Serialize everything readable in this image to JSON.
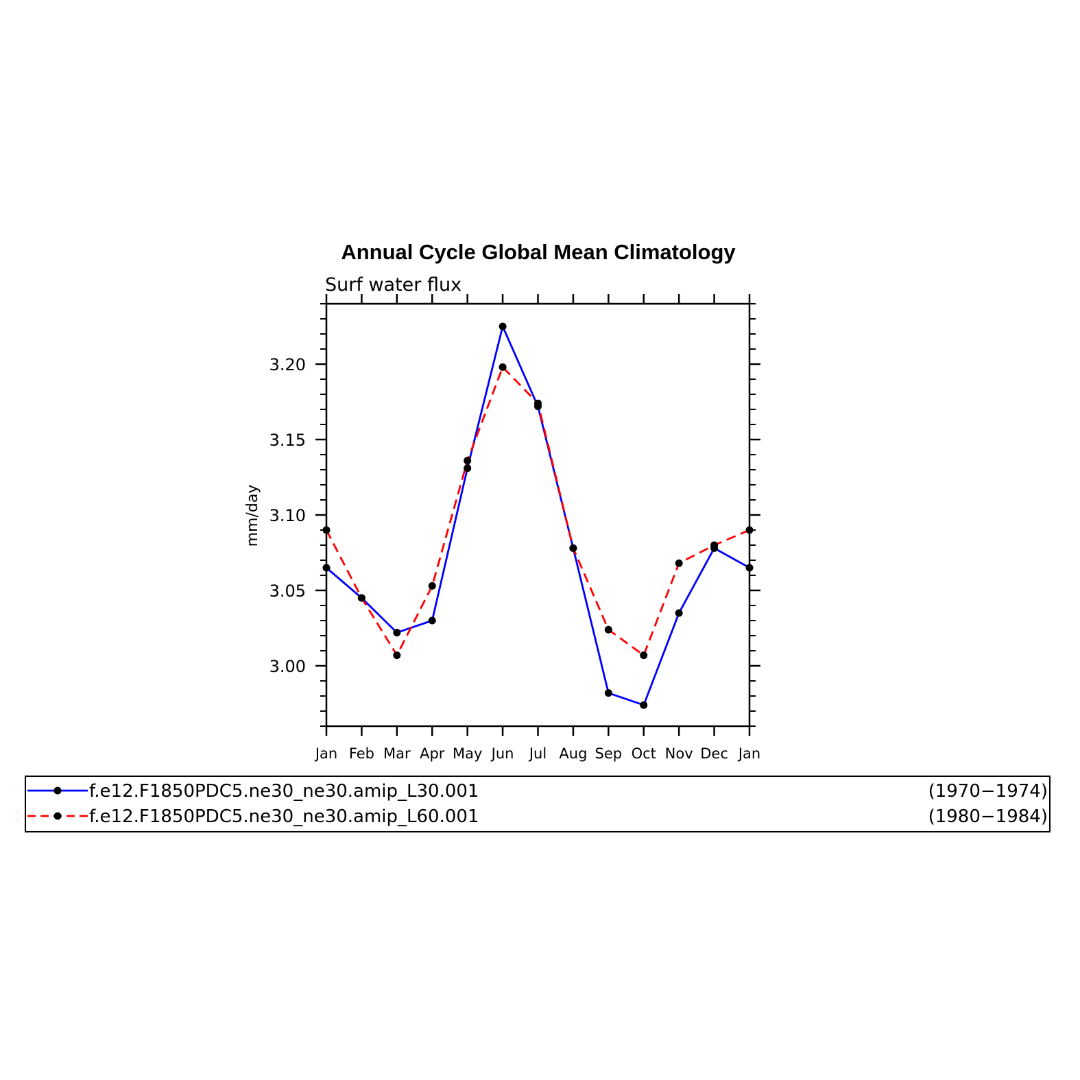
{
  "chart_data": {
    "type": "line",
    "title": "Annual Cycle Global Mean Climatology",
    "subtitle": "Surf water flux",
    "ylabel": "mm/day",
    "xlabel": "",
    "categories": [
      "Jan",
      "Feb",
      "Mar",
      "Apr",
      "May",
      "Jun",
      "Jul",
      "Aug",
      "Sep",
      "Oct",
      "Nov",
      "Dec",
      "Jan"
    ],
    "ylim": [
      2.96,
      3.24
    ],
    "yticks": [
      "3.00",
      "3.05",
      "3.10",
      "3.15",
      "3.20"
    ],
    "ytick_values": [
      3.0,
      3.05,
      3.1,
      3.15,
      3.2
    ],
    "series": [
      {
        "name": "f.e12.F1850PDC5.ne30_ne30.amip_L30.001",
        "period": "(1970−1974)",
        "color": "#0000ff",
        "dash": "solid",
        "values": [
          3.065,
          3.045,
          3.022,
          3.03,
          3.131,
          3.225,
          3.172,
          3.078,
          2.982,
          2.974,
          3.035,
          3.078,
          3.065
        ]
      },
      {
        "name": "f.e12.F1850PDC5.ne30_ne30.amip_L60.001",
        "period": "(1980−1984)",
        "color": "#ff0000",
        "dash": "dashed",
        "values": [
          3.09,
          3.045,
          3.007,
          3.053,
          3.136,
          3.198,
          3.174,
          3.078,
          3.024,
          3.007,
          3.068,
          3.08,
          3.09
        ]
      }
    ],
    "marker_color": "#000000",
    "grid": false,
    "legend_position": "bottom"
  }
}
